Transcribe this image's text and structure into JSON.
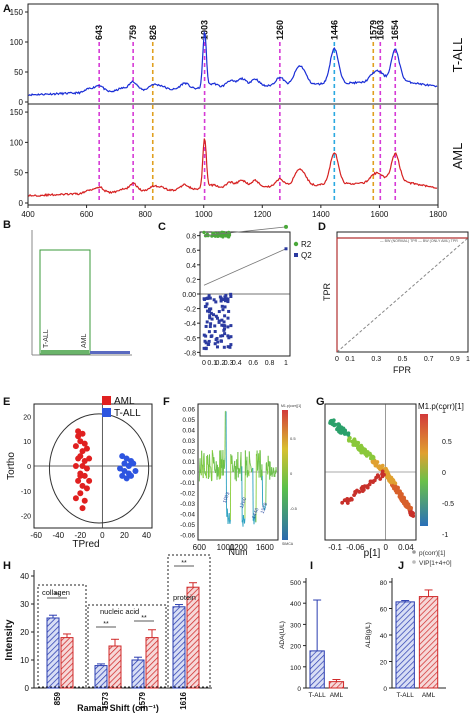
{
  "panel_letters": [
    "A",
    "B",
    "C",
    "D",
    "E",
    "F",
    "G",
    "H",
    "I",
    "J"
  ],
  "chart_data": [
    {
      "panel": "A",
      "type": "line",
      "series": [
        {
          "name": "T-ALL",
          "color": "#1a2ed6"
        },
        {
          "name": "AML",
          "color": "#d62020"
        }
      ],
      "xlim": [
        400,
        1800
      ],
      "x_ticks": [
        "400",
        "600",
        "800",
        "1000",
        "1200",
        "1400",
        "1600",
        "1800"
      ],
      "y_ticks_top": [
        "0",
        "50",
        "100",
        "150"
      ],
      "y_ticks_bottom": [
        "0",
        "50",
        "100",
        "150"
      ],
      "peaks": [
        {
          "x": 643,
          "label": "643",
          "color": "#d63ad6"
        },
        {
          "x": 759,
          "label": "759",
          "color": "#d63ad6"
        },
        {
          "x": 826,
          "label": "826",
          "color": "#e0a020"
        },
        {
          "x": 1003,
          "label": "1003",
          "color": "#d63ad6"
        },
        {
          "x": 1260,
          "label": "1260",
          "color": "#d63ad6"
        },
        {
          "x": 1446,
          "label": "1446",
          "color": "#2aa8e0"
        },
        {
          "x": 1579,
          "label": "1579",
          "color": "#e0a020"
        },
        {
          "x": 1603,
          "label": "1603",
          "color": "#d63ad6"
        },
        {
          "x": 1654,
          "label": "1654",
          "color": "#d63ad6"
        }
      ],
      "features": [
        {
          "x": 610,
          "h": 10
        },
        {
          "x": 643,
          "h": 18
        },
        {
          "x": 720,
          "h": 8
        },
        {
          "x": 759,
          "h": 25
        },
        {
          "x": 826,
          "h": 14
        },
        {
          "x": 855,
          "h": 10
        },
        {
          "x": 935,
          "h": 16
        },
        {
          "x": 1003,
          "h": 150
        },
        {
          "x": 1033,
          "h": 12
        },
        {
          "x": 1090,
          "h": 18
        },
        {
          "x": 1130,
          "h": 22
        },
        {
          "x": 1175,
          "h": 20
        },
        {
          "x": 1260,
          "h": 22
        },
        {
          "x": 1320,
          "h": 35
        },
        {
          "x": 1340,
          "h": 30
        },
        {
          "x": 1446,
          "h": 95
        },
        {
          "x": 1579,
          "h": 20
        },
        {
          "x": 1603,
          "h": 22
        },
        {
          "x": 1654,
          "h": 85
        }
      ]
    },
    {
      "panel": "B",
      "type": "bar",
      "categories": [
        "T-ALL",
        "AML"
      ]
    },
    {
      "panel": "C",
      "type": "scatter",
      "series": [
        {
          "name": "R2",
          "color": "#4aa83a"
        },
        {
          "name": "Q2",
          "color": "#2b3aa0"
        }
      ],
      "xlim": [
        0,
        1
      ],
      "ylim": [
        -0.8,
        0.8
      ],
      "x_ticks": [
        "0",
        "0.1",
        "0.2",
        "0.3",
        "0.4",
        "0.6",
        "0.8",
        "1"
      ],
      "y_ticks": [
        "0.8",
        "0.6",
        "0.4",
        "0.2",
        "0.00",
        "-0.2",
        "-0.4",
        "-0.6",
        "-0.8"
      ],
      "r2_fit": [
        [
          0,
          0.6
        ],
        [
          1,
          0.92
        ]
      ],
      "q2_fit": [
        [
          0,
          0.0
        ],
        [
          1,
          0.62
        ]
      ]
    },
    {
      "panel": "D",
      "type": "line",
      "xlabel": "FPR",
      "ylabel": "TPR",
      "xlim": [
        0,
        1
      ],
      "ylim": [
        0,
        1
      ],
      "x_ticks": [
        "0",
        "0.1",
        "0.3",
        "0.5",
        "0.7",
        "0.9",
        "1"
      ],
      "legend_text": "— BW (NORMAL) TPR — BW (ONLY AML) TPR",
      "roc": [
        [
          0,
          0
        ],
        [
          0,
          1
        ],
        [
          1,
          1
        ]
      ]
    },
    {
      "panel": "E",
      "type": "scatter",
      "xlabel": "TPred",
      "ylabel": "Tortho",
      "xlim": [
        -60,
        40
      ],
      "ylim": [
        -25,
        25
      ],
      "x_ticks": [
        "-60",
        "-40",
        "-20",
        "0",
        "20",
        "40"
      ],
      "y_ticks": [
        "20",
        "10",
        "0",
        "-10",
        "-20"
      ],
      "series": [
        {
          "name": "AML",
          "color": "#e02020",
          "points": [
            [
              -22,
              14
            ],
            [
              -18,
              13
            ],
            [
              -20,
              10
            ],
            [
              -16,
              9
            ],
            [
              -24,
              8
            ],
            [
              -18,
              6
            ],
            [
              -14,
              7
            ],
            [
              -20,
              4
            ],
            [
              -22,
              3
            ],
            [
              -16,
              2
            ],
            [
              -12,
              3
            ],
            [
              -24,
              0
            ],
            [
              -18,
              0
            ],
            [
              -14,
              -1
            ],
            [
              -20,
              -3
            ],
            [
              -16,
              -4
            ],
            [
              -22,
              -6
            ],
            [
              -18,
              -8
            ],
            [
              -14,
              -9
            ],
            [
              -20,
              -11
            ],
            [
              -24,
              -13
            ],
            [
              -16,
              -14
            ],
            [
              -18,
              -17
            ],
            [
              -20,
              -4
            ],
            [
              -12,
              -6
            ],
            [
              -22,
              12
            ]
          ]
        },
        {
          "name": "T-ALL",
          "color": "#2d55e0",
          "points": [
            [
              18,
              4
            ],
            [
              22,
              3
            ],
            [
              26,
              2
            ],
            [
              20,
              1
            ],
            [
              24,
              0
            ],
            [
              28,
              1
            ],
            [
              16,
              -1
            ],
            [
              20,
              -2
            ],
            [
              24,
              -3
            ],
            [
              18,
              -4
            ],
            [
              22,
              -5
            ],
            [
              26,
              -4
            ],
            [
              30,
              -2
            ]
          ]
        }
      ]
    },
    {
      "panel": "F",
      "type": "line",
      "xlabel": "Num",
      "x_ticks": [
        "600",
        "1000",
        "1200",
        "1600"
      ],
      "y_ticks": [
        "0.06",
        "0.05",
        "0.04",
        "0.03",
        "0.02",
        "0.01",
        "0.00",
        "-0.01",
        "-0.02",
        "-0.03",
        "-0.04",
        "-0.05",
        "-0.06"
      ],
      "colorbar_title": "M1.p(corr)[1]",
      "colorbar_ticks": [
        "0.5",
        "0",
        "-0.5"
      ],
      "colorbar_bottom": "SIMCA",
      "annotations": [
        "1003",
        "1260",
        "1446",
        "1579"
      ]
    },
    {
      "panel": "G",
      "type": "scatter",
      "xlabel": "p[1]",
      "x_ticks": [
        "-0.1",
        "-0.06",
        "0",
        "0.04"
      ],
      "y_ticks": [
        "1",
        "0.5",
        "0",
        "-0.5",
        "-1"
      ],
      "colorbar_title": "M1.p(corr)[1]",
      "colorbar_ticks": [
        "1",
        "0.5",
        "0",
        "-0.5",
        "-1"
      ],
      "legend": [
        "p(corr)[1]",
        "VIP[1+4+0]"
      ]
    },
    {
      "panel": "H",
      "type": "bar",
      "ylabel": "Intensity",
      "xlabel": "Raman Shift (cm⁻¹)",
      "categories": [
        "859",
        "1573",
        "1579",
        "1616"
      ],
      "series": [
        {
          "name": "T-ALL",
          "values": [
            25,
            8,
            10,
            29
          ]
        },
        {
          "name": "AML",
          "values": [
            18,
            15,
            18,
            36
          ]
        }
      ],
      "ylim": [
        0,
        40
      ],
      "y_ticks": [
        "0",
        "10",
        "20",
        "30",
        "40"
      ],
      "group_labels": [
        "collagen",
        "nucleic acid",
        "protein"
      ],
      "sig_marks": [
        "**",
        "**",
        "**",
        "**"
      ]
    },
    {
      "panel": "I",
      "type": "bar",
      "ylabel": "ADA(U/L)",
      "categories": [
        "T-ALL",
        "AML"
      ],
      "values": [
        175,
        30
      ],
      "errors": [
        240,
        10
      ],
      "ylim": [
        0,
        500
      ],
      "y_ticks": [
        "0",
        "100",
        "200",
        "300",
        "400",
        "500"
      ]
    },
    {
      "panel": "J",
      "type": "bar",
      "ylabel": "ALB(g/L)",
      "categories": [
        "T-ALL",
        "AML"
      ],
      "values": [
        65,
        69
      ],
      "errors": [
        1,
        5
      ],
      "ylim": [
        0,
        80
      ],
      "y_ticks": [
        "0",
        "20",
        "40",
        "60",
        "80"
      ]
    }
  ]
}
